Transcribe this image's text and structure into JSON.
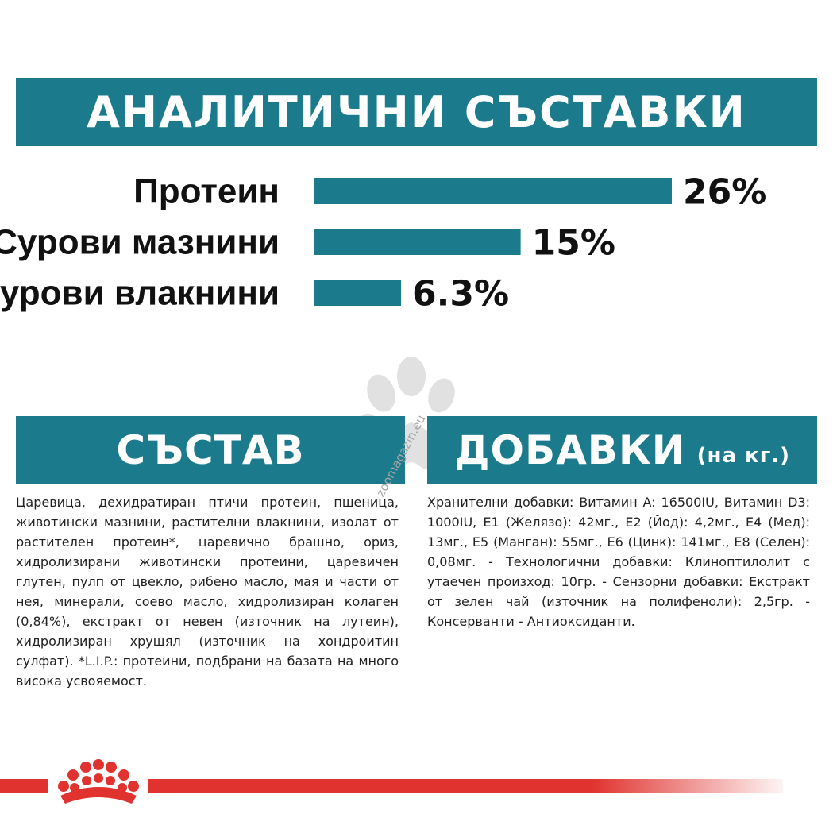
{
  "sections": {
    "analytical_title": "АНАЛИТИЧНИ СЪСТАВКИ",
    "composition_title": "СЪСТАВ",
    "additives_title": "ДОБАВКИ",
    "additives_subtitle": "(на кг.)"
  },
  "chart_data": {
    "type": "bar",
    "orientation": "horizontal",
    "categories": [
      "Протеин",
      "Сурови мазнини",
      "Сурови влакнини"
    ],
    "values": [
      26,
      15,
      6.3
    ],
    "value_labels": [
      "26%",
      "15%",
      "6.3%"
    ],
    "title": "АНАЛИТИЧНИ СЪСТАВКИ",
    "xlabel": "",
    "ylabel": "",
    "grid": false,
    "bar_color": "#1b7b8c"
  },
  "composition_text": "Царевица, дехидратиран птичи протеин, пшеница, животински мазнини, растителни влакнини, изолат от растителен протеин*, царевично брашно, ориз, хидролизирани животински протеини, царевичен глутен, пулп от цвекло, рибено масло, мая и части от нея, минерали, соево масло, хидролизиран колаген (0,84%), екстракт от невен (източник на лутеин), хидролизиран хрущял (източник на хондроитин сулфат). *L.I.P.: протеини, подбрани на базата на много висока усвояемост.",
  "additives_text": "Хранителни добавки: Витамин A: 16500IU, Витамин D3: 1000IU, E1 (Желязо): 42мг., E2 (Йод): 4,2мг., E4 (Мед): 13мг., E5 (Манган): 55мг., E6 (Цинк): 141мг., E8 (Селен): 0,08мг. - Технологични добавки: Клиноптилолит с утаечен произход: 10гр. - Сензорни добавки: Екстракт от зелен чай (източник на полифеноли): 2,5гр. - Консерванти - Антиоксиданти.",
  "watermark": "zoomagazin.eu",
  "colors": {
    "teal": "#1b7b8c",
    "brand_red": "#e0332f",
    "text": "#222222"
  },
  "icons": {
    "watermark_icon": "paw-icon",
    "logo": "royal-canin-crown-logo"
  }
}
